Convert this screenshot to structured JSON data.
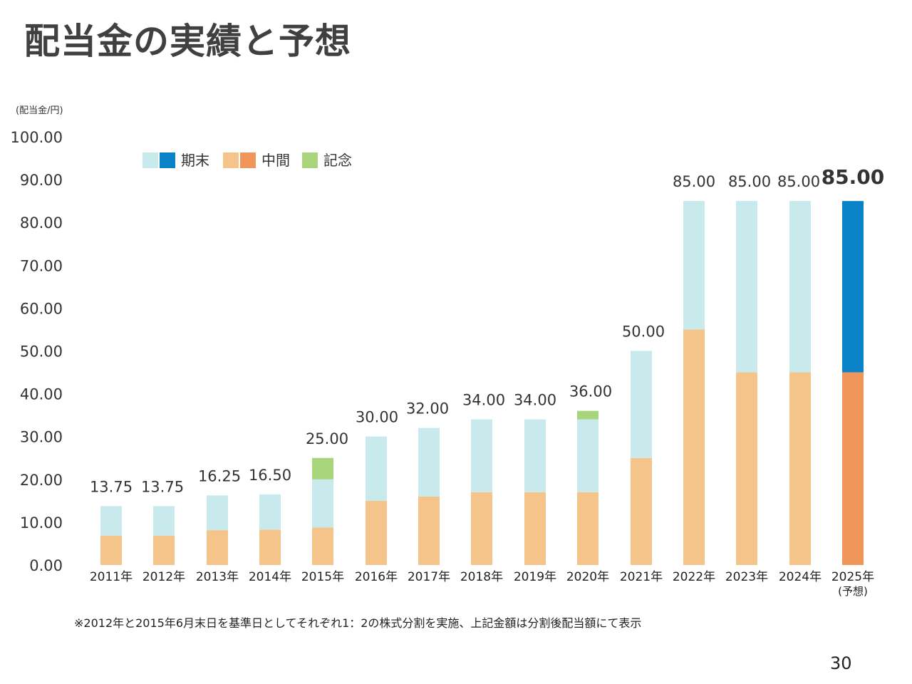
{
  "page": {
    "title": "配当金の実績と予想",
    "footnote": "※2012年と2015年6月末日を基準日としてそれぞれ1：2の株式分割を実施、上記金額は分割後配当額にて表示",
    "page_number": "30"
  },
  "chart_data": {
    "type": "bar",
    "stacked": true,
    "unit_label": "(配当金/円)",
    "ylim": [
      0,
      100
    ],
    "yticks": [
      "0.00",
      "10.00",
      "20.00",
      "30.00",
      "40.00",
      "50.00",
      "60.00",
      "70.00",
      "80.00",
      "90.00",
      "100.00"
    ],
    "categories": [
      "2011年",
      "2012年",
      "2013年",
      "2014年",
      "2015年",
      "2016年",
      "2017年",
      "2018年",
      "2019年",
      "2020年",
      "2021年",
      "2022年",
      "2023年",
      "2024年",
      "2025年"
    ],
    "category_notes": [
      "",
      "",
      "",
      "",
      "",
      "",
      "",
      "",
      "",
      "",
      "",
      "",
      "",
      "",
      "(予想)"
    ],
    "series": [
      {
        "name": "中間",
        "values": [
          6.875,
          6.875,
          8.125,
          8.25,
          8.75,
          15,
          16,
          17,
          17,
          17,
          25,
          55,
          45,
          45,
          45
        ]
      },
      {
        "name": "期末",
        "values": [
          6.875,
          6.875,
          8.125,
          8.25,
          11.25,
          15,
          16,
          17,
          17,
          17,
          25,
          30,
          40,
          40,
          40
        ]
      },
      {
        "name": "記念",
        "values": [
          0,
          0,
          0,
          0,
          5,
          0,
          0,
          0,
          0,
          2,
          0,
          0,
          0,
          0,
          0
        ]
      }
    ],
    "totals": [
      "13.75",
      "13.75",
      "16.25",
      "16.50",
      "25.00",
      "30.00",
      "32.00",
      "34.00",
      "34.00",
      "36.00",
      "50.00",
      "85.00",
      "85.00",
      "85.00",
      "85.00"
    ],
    "forecast_index": 14,
    "legend": [
      {
        "label": "期末",
        "colors": [
          "#c8eaec",
          "#0a82c8"
        ]
      },
      {
        "label": "中間",
        "colors": [
          "#f4c48a",
          "#f0965a"
        ]
      },
      {
        "label": "記念",
        "colors": [
          "#a8d47c"
        ]
      }
    ],
    "colors": {
      "期末_actual": "#c8eaec",
      "期末_forecast": "#0a82c8",
      "中間_actual": "#f4c48a",
      "中間_forecast": "#f0965a",
      "記念": "#a8d47c"
    }
  }
}
